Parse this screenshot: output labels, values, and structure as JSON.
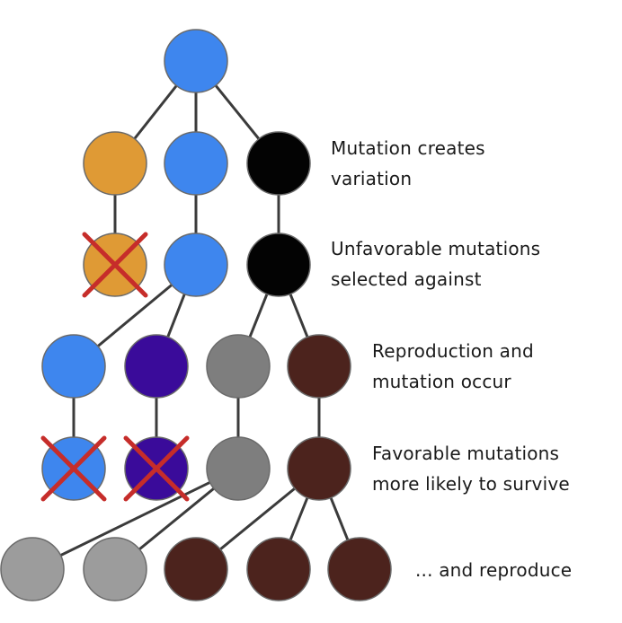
{
  "colors": {
    "blue": "#3e86ee",
    "orange": "#df9a35",
    "black": "#030303",
    "purple": "#3a0b9a",
    "gray": "#7e7e7e",
    "lightgray": "#9c9c9c",
    "brown": "#4c231d",
    "edge": "#3b3b3b",
    "cross": "#c62d2a"
  },
  "captions": {
    "mutation": [
      "Mutation creates",
      "variation"
    ],
    "unfavorable": [
      "Unfavorable mutations",
      "selected against"
    ],
    "reproduction": [
      "Reproduction and",
      "mutation occur"
    ],
    "favorable": [
      "Favorable mutations",
      "more likely to survive"
    ],
    "reproduce": [
      "... and reproduce"
    ]
  },
  "nodes": [
    {
      "id": "root",
      "color": "blue"
    },
    {
      "id": "g1-orange",
      "color": "orange"
    },
    {
      "id": "g1-blue",
      "color": "blue"
    },
    {
      "id": "g1-black",
      "color": "black"
    },
    {
      "id": "g2-orange",
      "color": "orange",
      "eliminated": true
    },
    {
      "id": "g2-blue",
      "color": "blue"
    },
    {
      "id": "g2-black",
      "color": "black"
    },
    {
      "id": "g3-blue",
      "color": "blue"
    },
    {
      "id": "g3-purple",
      "color": "purple"
    },
    {
      "id": "g3-gray",
      "color": "gray"
    },
    {
      "id": "g3-brown",
      "color": "brown"
    },
    {
      "id": "g4-blue",
      "color": "blue",
      "eliminated": true
    },
    {
      "id": "g4-purple",
      "color": "purple",
      "eliminated": true
    },
    {
      "id": "g4-gray",
      "color": "gray"
    },
    {
      "id": "g4-brown",
      "color": "brown"
    },
    {
      "id": "g5-gray-1",
      "color": "lightgray"
    },
    {
      "id": "g5-gray-2",
      "color": "lightgray"
    },
    {
      "id": "g5-brown-1",
      "color": "brown"
    },
    {
      "id": "g5-brown-2",
      "color": "brown"
    },
    {
      "id": "g5-brown-3",
      "color": "brown"
    }
  ],
  "edges": [
    [
      "root",
      "g1-orange"
    ],
    [
      "root",
      "g1-blue"
    ],
    [
      "root",
      "g1-black"
    ],
    [
      "g1-orange",
      "g2-orange"
    ],
    [
      "g1-blue",
      "g2-blue"
    ],
    [
      "g1-black",
      "g2-black"
    ],
    [
      "g2-blue",
      "g3-blue"
    ],
    [
      "g2-blue",
      "g3-purple"
    ],
    [
      "g2-black",
      "g3-gray"
    ],
    [
      "g2-black",
      "g3-brown"
    ],
    [
      "g3-blue",
      "g4-blue"
    ],
    [
      "g3-purple",
      "g4-purple"
    ],
    [
      "g3-gray",
      "g4-gray"
    ],
    [
      "g3-brown",
      "g4-brown"
    ],
    [
      "g4-gray",
      "g5-gray-1"
    ],
    [
      "g4-gray",
      "g5-gray-2"
    ],
    [
      "g4-brown",
      "g5-brown-1"
    ],
    [
      "g4-brown",
      "g5-brown-2"
    ],
    [
      "g4-brown",
      "g5-brown-3"
    ]
  ]
}
